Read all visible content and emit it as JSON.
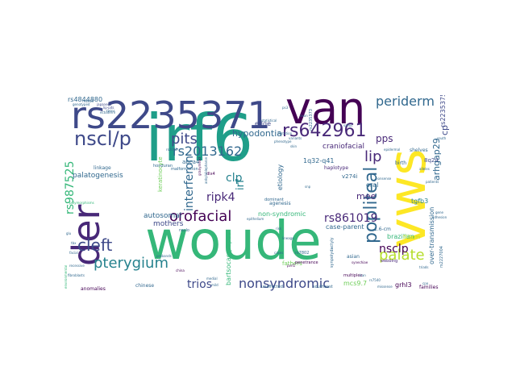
{
  "palette": {
    "dark_purple": "#440154",
    "purple": "#482878",
    "indigo": "#3e4989",
    "blue": "#31688e",
    "teal": "#26828e",
    "green_teal": "#1f9e89",
    "green": "#35b779",
    "light_green": "#6ece58",
    "lime": "#b5de2b",
    "yellow": "#fde725"
  },
  "words": {
    "irf6": "irf6",
    "woude": "woude",
    "vws": "vws",
    "van": "van",
    "rs2235371": "rs2235371",
    "der": "der",
    "nscl_p": "nscl/p",
    "rs642961": "rs642961",
    "popliteal": "popliteal",
    "periderm": "periderm",
    "pits": "pits",
    "rs2013162": "rs2013162",
    "pterygium": "pterygium",
    "cleft": "cleft",
    "orofacial": "orofacial",
    "nonsyndromic": "nonsyndromic",
    "palate": "palate",
    "lip": "lip",
    "trios": "trios",
    "rs987525": "rs987525",
    "ripk4": "ripk4",
    "clp": "clp",
    "interferon": "interferon",
    "rs861019": "rs861019",
    "nsclp": "nsclp",
    "pps": "pps",
    "hypodontia": "hypodontia",
    "arhgap29": "arhgap29",
    "mee": "mee",
    "irf": "irf",
    "cp": "cp",
    "edge": "edge",
    "craniofacial": "craniofacial",
    "rs4844880": "rs4844880",
    "palatogenesis": "palatogenesis",
    "overtransmission": "over-transmission",
    "rs2235375": "rs2235375",
    "autosomal": "autosomal",
    "mothers": "mothers",
    "non_syndromic": "non-syndromic",
    "case_parent": "case-parent",
    "tgfb3": "tgfb3",
    "brazilian": "brazilian",
    "bartsocas_papas": "bartsocas-papas",
    "grhl3": "grhl3",
    "mcs9_7": "mcs9.7",
    "etiology": "etiology",
    "oral": "oral",
    "1q32_q41": "1q32-q41",
    "v274i": "v274i",
    "8q24": "8q24",
    "fathers": "fathers",
    "keratinocyte": "keratinocyte",
    "abca4": "abca4",
    "filiform": "filiform",
    "asian": "asian",
    "1_6_cm": "1.6-cm",
    "agenesis": "agenesis",
    "dominant": "dominant",
    "haplotype": "haplotype",
    "shelves": "shelves",
    "birth": "birth",
    "linkage": "linkage",
    "chinese": "chinese",
    "rs7802": "rs7802",
    "penetrance": "penetrance",
    "anomalies": "anomalies",
    "families": "families",
    "southeast": "southeast",
    "unaffected": "unaffected",
    "multiplex": "multiplex",
    "webbing": "webbing",
    "malformation": "malformation",
    "honduran": "honduran",
    "nsclo": "nsclo",
    "dlx4": "dlx4",
    "synpolydactyly": "synpolydactyly",
    "rs2227004": "rs2227004",
    "rs2235373": "rs2235373",
    "japanese": "japanese",
    "lip_pits": "lip-pits",
    "twins": "twins",
    "snp": "snp",
    "variants": "variants",
    "mutation": "mutation",
    "phenotype": "phenotype",
    "skin": "skin",
    "medial": "medial",
    "mild": "mild",
    "ankyloblepharon": "ankyloblepharon",
    "granymead": "granymead",
    "statistical": "statistical",
    "exon": "exon",
    "probands": "probands",
    "pvrl1": "pvrl1",
    "china": "china",
    "polymorphisms": "polymorphisms",
    "gene": "gene",
    "south": "south",
    "cpo": "cpo",
    "sallus": "sallus",
    "epidermal": "epidermal",
    "nonsense": "nonsense",
    "synechiae": "synechiae",
    "missense": "missense",
    "genotyped": "genotyped",
    "facial": "facial",
    "glu": "glu",
    "tbx": "tbx",
    "ectoderm": "ectoderm",
    "environmental": "environmental",
    "recessive": "recessive",
    "fibroblasts": "fibroblasts",
    "lineage": "lineage",
    "alleles": "alleles",
    "patients": "patients",
    "triads": "triads",
    "rs7540": "rs7540",
    "iran": "iran",
    "ps3": "ps3",
    "risk": "risk",
    "cases": "cases",
    "adhesion": "adhesion",
    "epithelium": "epithelium",
    "rs2013": "rs2013",
    "rs4844": "rs4844"
  }
}
